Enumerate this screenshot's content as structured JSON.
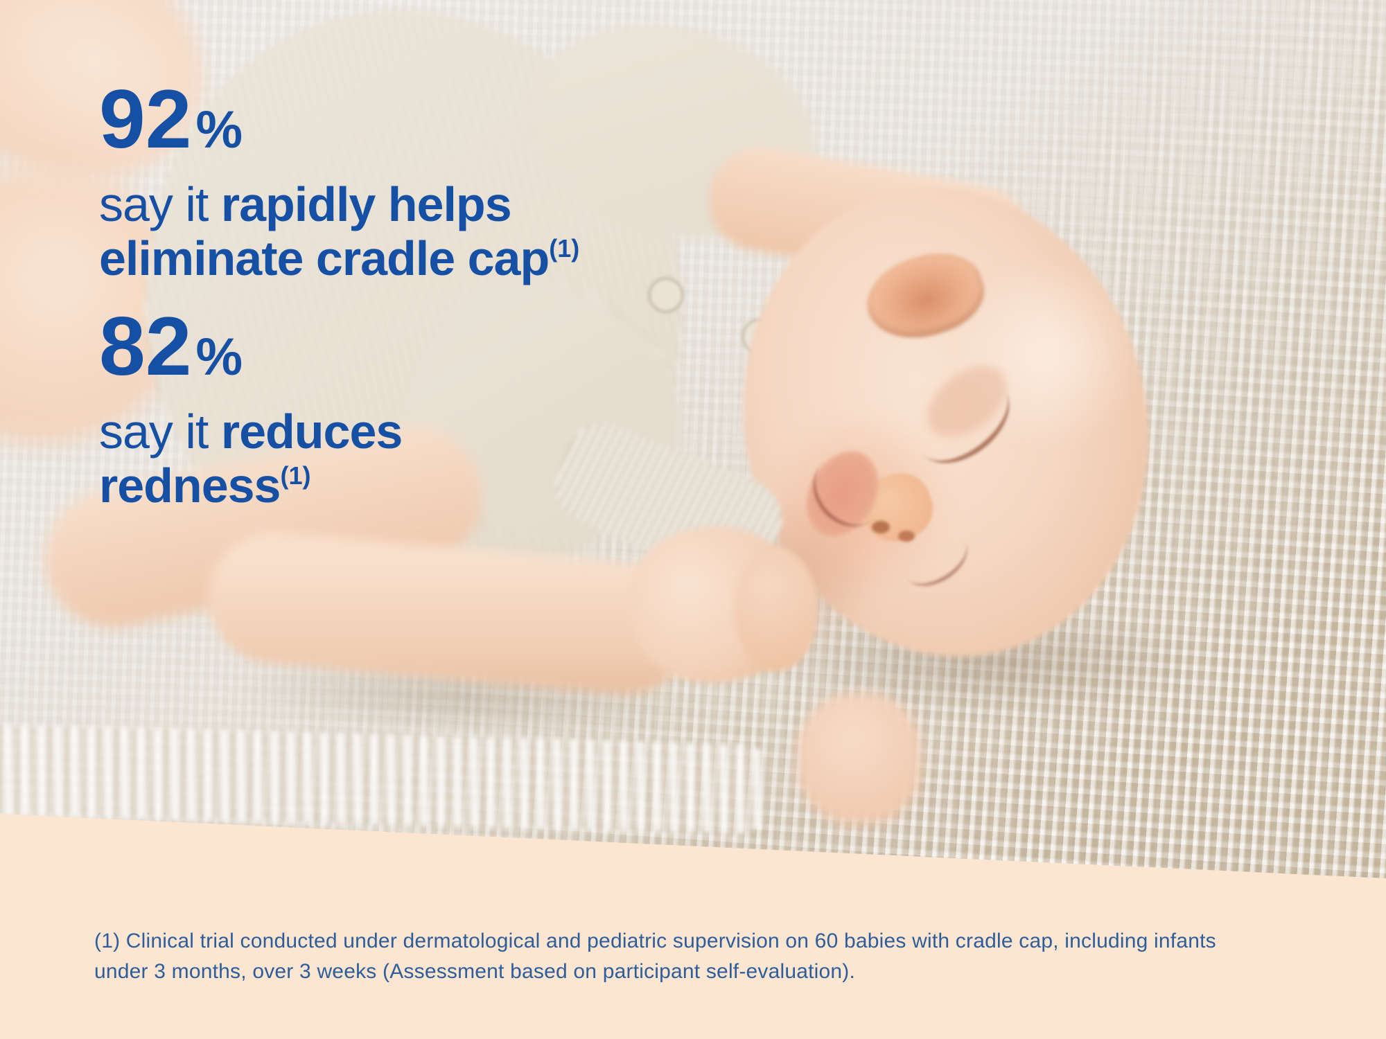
{
  "overlay": {
    "stats": [
      {
        "value": "92",
        "unit": "%",
        "line1": {
          "regular": "say it ",
          "bold": "rapidly helps"
        },
        "line2": {
          "bold": "eliminate cradle cap",
          "sup": "(1)"
        }
      },
      {
        "value": "82",
        "unit": "%",
        "line1": {
          "regular": "say it ",
          "bold": "reduces"
        },
        "line2": {
          "bold": "redness",
          "sup": "(1)"
        }
      }
    ]
  },
  "footnote": {
    "line1": "(1) Clinical trial conducted under dermatological and pediatric supervision on 60 babies with cradle cap, including infants",
    "line2": "under 3 months, over 3 weeks (Assessment based on participant self-evaluation)."
  },
  "photo": {
    "description": "Sleeping newborn baby in a cream ribbed onesie lying on a textured cream waffle-knit blanket"
  },
  "colors": {
    "headline_blue": "#1550a4",
    "footnote_blue": "#2d5d9a",
    "band_peach": "#fce5d1"
  }
}
